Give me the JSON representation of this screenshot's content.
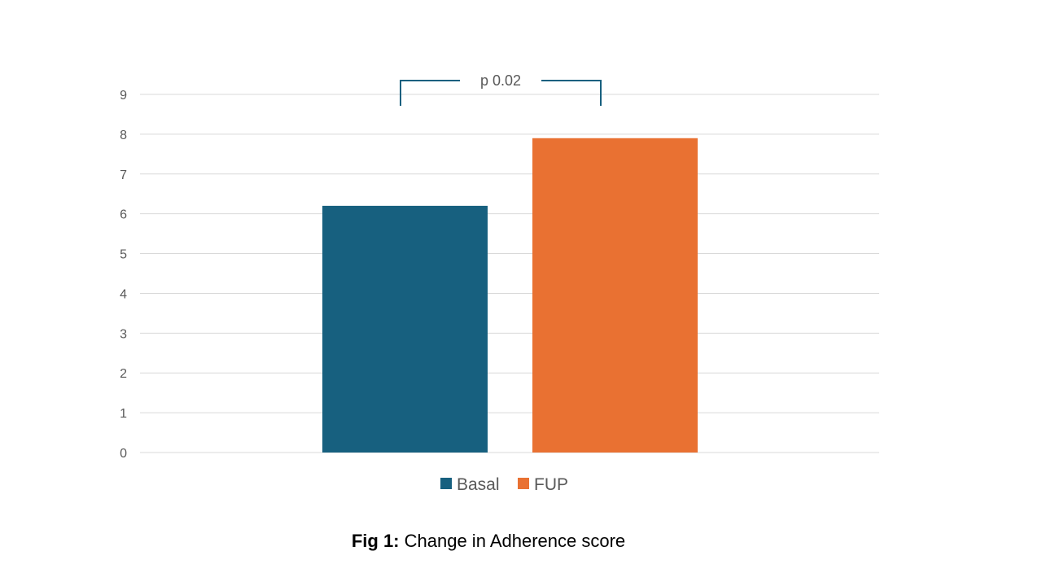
{
  "chart_data": {
    "type": "bar",
    "series": [
      {
        "name": "Basal",
        "value": 6.2,
        "color": "#17607f"
      },
      {
        "name": "FUP",
        "value": 7.9,
        "color": "#e97132"
      }
    ],
    "ylim": [
      0,
      9
    ],
    "yticks": [
      "0",
      "1",
      "2",
      "3",
      "4",
      "5",
      "6",
      "7",
      "8",
      "9"
    ],
    "grid": true,
    "legend_position": "bottom",
    "annotation": {
      "text": "p 0.02",
      "type": "significance-bracket",
      "color": "#17607f"
    }
  },
  "caption": {
    "label": "Fig 1:",
    "text": " Change in Adherence score"
  }
}
